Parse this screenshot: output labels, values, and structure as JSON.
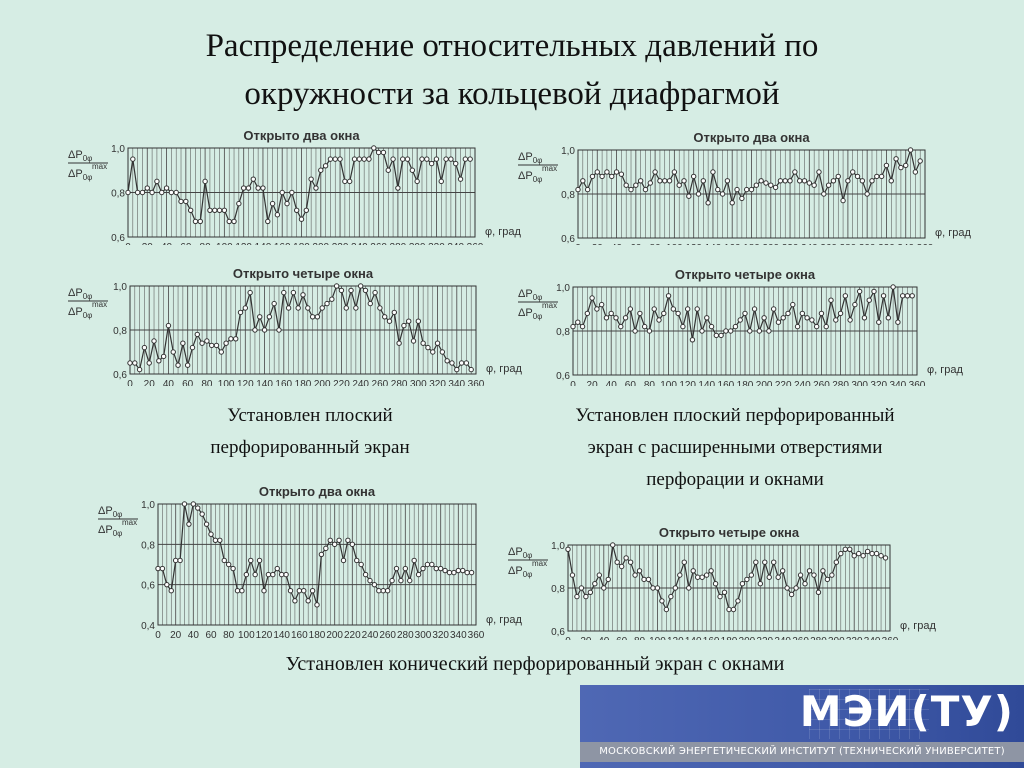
{
  "slide": {
    "title_line1": "Распределение относительных давлений по",
    "title_line2": "окружности за кольцевой диафрагмой"
  },
  "captions": {
    "flat_screen": [
      "Установлен плоский",
      "перфорированный экран"
    ],
    "flat_screen_wide": [
      "Установлен плоский перфорированный",
      "экран с расширенными отверстиями",
      "перфорации и окнами"
    ],
    "conical_screen": [
      "Установлен конический перфорированный экран с окнами"
    ]
  },
  "logo": {
    "name": "МЭИ(ТУ)",
    "subtitle": "МОСКОВСКИЙ ЭНЕРГЕТИЧЕСКИЙ ИНСТИТУТ (ТЕХНИЧЕСКИЙ УНИВЕРСИТЕТ)"
  },
  "colors": {
    "background": "#d6ede4",
    "line": "#333333",
    "grid": "#555555",
    "logo_blue": "#4f68b4"
  },
  "chart_data": [
    {
      "type": "line",
      "title": "Открыто два окна",
      "ylabel_num": "ΔP",
      "ylabel_num_sub": "0φ",
      "ylabel_den": "ΔP",
      "ylabel_den_sub": "0φ",
      "ylabel_den_sup": "max",
      "xlabel": "φ, град",
      "ylim": [
        0.6,
        1.0
      ],
      "yticks": [
        "1,0",
        "0,8",
        "0,6"
      ],
      "ytick_values": [
        1.0,
        0.8,
        0.6
      ],
      "xticks": [
        "0",
        "20",
        "40",
        "60",
        "80",
        "100",
        "120",
        "140",
        "160",
        "180",
        "200",
        "220",
        "240",
        "260",
        "280",
        "300",
        "320",
        "340",
        "360"
      ],
      "x": [
        0,
        5,
        10,
        15,
        20,
        25,
        30,
        35,
        40,
        45,
        50,
        55,
        60,
        65,
        70,
        75,
        80,
        85,
        90,
        95,
        100,
        105,
        110,
        115,
        120,
        125,
        130,
        135,
        140,
        145,
        150,
        155,
        160,
        165,
        170,
        175,
        180,
        185,
        190,
        195,
        200,
        205,
        210,
        215,
        220,
        225,
        230,
        235,
        240,
        245,
        250,
        255,
        260,
        265,
        270,
        275,
        280,
        285,
        290,
        295,
        300,
        305,
        310,
        315,
        320,
        325,
        330,
        335,
        340,
        345,
        350,
        355
      ],
      "values": [
        0.8,
        0.95,
        0.8,
        0.8,
        0.82,
        0.8,
        0.85,
        0.8,
        0.82,
        0.8,
        0.8,
        0.76,
        0.76,
        0.72,
        0.67,
        0.67,
        0.85,
        0.72,
        0.72,
        0.72,
        0.72,
        0.67,
        0.67,
        0.75,
        0.82,
        0.82,
        0.86,
        0.82,
        0.82,
        0.67,
        0.75,
        0.7,
        0.8,
        0.75,
        0.8,
        0.72,
        0.68,
        0.72,
        0.86,
        0.82,
        0.9,
        0.92,
        0.95,
        0.95,
        0.95,
        0.85,
        0.85,
        0.95,
        0.95,
        0.95,
        0.95,
        1.0,
        0.98,
        0.98,
        0.9,
        0.95,
        0.82,
        0.95,
        0.95,
        0.9,
        0.85,
        0.95,
        0.95,
        0.93,
        0.95,
        0.85,
        0.95,
        0.95,
        0.93,
        0.86,
        0.95,
        0.95
      ]
    },
    {
      "type": "line",
      "title": "Открыто два окна",
      "ylabel_num": "ΔP",
      "ylabel_num_sub": "0φ",
      "ylabel_den": "ΔP",
      "ylabel_den_sub": "0φ",
      "ylabel_den_sup": "max",
      "xlabel": "φ, град",
      "ylim": [
        0.6,
        1.0
      ],
      "yticks": [
        "1,0",
        "0,8",
        "0,6"
      ],
      "ytick_values": [
        1.0,
        0.8,
        0.6
      ],
      "xticks": [
        "0",
        "20",
        "40",
        "60",
        "80",
        "100",
        "120",
        "140",
        "160",
        "180",
        "200",
        "220",
        "240",
        "260",
        "280",
        "300",
        "320",
        "340",
        "360"
      ],
      "x": [
        0,
        5,
        10,
        15,
        20,
        25,
        30,
        35,
        40,
        45,
        50,
        55,
        60,
        65,
        70,
        75,
        80,
        85,
        90,
        95,
        100,
        105,
        110,
        115,
        120,
        125,
        130,
        135,
        140,
        145,
        150,
        155,
        160,
        165,
        170,
        175,
        180,
        185,
        190,
        195,
        200,
        205,
        210,
        215,
        220,
        225,
        230,
        235,
        240,
        245,
        250,
        255,
        260,
        265,
        270,
        275,
        280,
        285,
        290,
        295,
        300,
        305,
        310,
        315,
        320,
        325,
        330,
        335,
        340,
        345,
        350,
        355
      ],
      "values": [
        0.82,
        0.86,
        0.82,
        0.88,
        0.9,
        0.88,
        0.9,
        0.88,
        0.9,
        0.89,
        0.84,
        0.82,
        0.84,
        0.86,
        0.82,
        0.85,
        0.9,
        0.86,
        0.86,
        0.86,
        0.9,
        0.84,
        0.86,
        0.79,
        0.88,
        0.8,
        0.86,
        0.76,
        0.9,
        0.82,
        0.8,
        0.86,
        0.76,
        0.82,
        0.78,
        0.82,
        0.82,
        0.84,
        0.86,
        0.85,
        0.84,
        0.83,
        0.86,
        0.86,
        0.86,
        0.9,
        0.86,
        0.86,
        0.85,
        0.84,
        0.9,
        0.8,
        0.84,
        0.86,
        0.88,
        0.77,
        0.86,
        0.9,
        0.88,
        0.86,
        0.8,
        0.86,
        0.88,
        0.88,
        0.93,
        0.86,
        0.96,
        0.92,
        0.93,
        1.0,
        0.9,
        0.95
      ]
    },
    {
      "type": "line",
      "title": "Открыто четыре окна",
      "ylabel_num": "ΔP",
      "ylabel_num_sub": "0φ",
      "ylabel_den": "ΔP",
      "ylabel_den_sub": "0φ",
      "ylabel_den_sup": "max",
      "xlabel": "φ, град",
      "ylim": [
        0.6,
        1.0
      ],
      "yticks": [
        "1,0",
        "0,8",
        "0,6"
      ],
      "ytick_values": [
        1.0,
        0.8,
        0.6
      ],
      "xticks": [
        "0",
        "20",
        "40",
        "60",
        "80",
        "100",
        "120",
        "140",
        "160",
        "180",
        "200",
        "220",
        "240",
        "260",
        "280",
        "300",
        "320",
        "340",
        "360"
      ],
      "x": [
        0,
        5,
        10,
        15,
        20,
        25,
        30,
        35,
        40,
        45,
        50,
        55,
        60,
        65,
        70,
        75,
        80,
        85,
        90,
        95,
        100,
        105,
        110,
        115,
        120,
        125,
        130,
        135,
        140,
        145,
        150,
        155,
        160,
        165,
        170,
        175,
        180,
        185,
        190,
        195,
        200,
        205,
        210,
        215,
        220,
        225,
        230,
        235,
        240,
        245,
        250,
        255,
        260,
        265,
        270,
        275,
        280,
        285,
        290,
        295,
        300,
        305,
        310,
        315,
        320,
        325,
        330,
        335,
        340,
        345,
        350,
        355
      ],
      "values": [
        0.65,
        0.65,
        0.62,
        0.72,
        0.65,
        0.75,
        0.66,
        0.68,
        0.82,
        0.7,
        0.64,
        0.74,
        0.64,
        0.72,
        0.78,
        0.74,
        0.75,
        0.73,
        0.73,
        0.7,
        0.74,
        0.76,
        0.76,
        0.88,
        0.9,
        0.97,
        0.8,
        0.86,
        0.8,
        0.86,
        0.92,
        0.8,
        0.97,
        0.9,
        0.97,
        0.9,
        0.96,
        0.9,
        0.86,
        0.86,
        0.9,
        0.92,
        0.94,
        1.0,
        0.98,
        0.9,
        0.98,
        0.9,
        1.0,
        0.98,
        0.92,
        0.97,
        0.9,
        0.86,
        0.84,
        0.88,
        0.74,
        0.82,
        0.84,
        0.75,
        0.84,
        0.74,
        0.72,
        0.7,
        0.74,
        0.7,
        0.66,
        0.65,
        0.62,
        0.65,
        0.65,
        0.62
      ]
    },
    {
      "type": "line",
      "title": "Открыто четыре окна",
      "ylabel_num": "ΔP",
      "ylabel_num_sub": "0φ",
      "ylabel_den": "ΔP",
      "ylabel_den_sub": "0φ",
      "ylabel_den_sup": "max",
      "xlabel": "φ, град",
      "ylim": [
        0.6,
        1.0
      ],
      "yticks": [
        "1,0",
        "0,8",
        "0,6"
      ],
      "ytick_values": [
        1.0,
        0.8,
        0.6
      ],
      "xticks": [
        "0",
        "20",
        "40",
        "60",
        "80",
        "100",
        "120",
        "140",
        "160",
        "180",
        "200",
        "220",
        "240",
        "260",
        "280",
        "300",
        "320",
        "340",
        "360"
      ],
      "x": [
        0,
        5,
        10,
        15,
        20,
        25,
        30,
        35,
        40,
        45,
        50,
        55,
        60,
        65,
        70,
        75,
        80,
        85,
        90,
        95,
        100,
        105,
        110,
        115,
        120,
        125,
        130,
        135,
        140,
        145,
        150,
        155,
        160,
        165,
        170,
        175,
        180,
        185,
        190,
        195,
        200,
        205,
        210,
        215,
        220,
        225,
        230,
        235,
        240,
        245,
        250,
        255,
        260,
        265,
        270,
        275,
        280,
        285,
        290,
        295,
        300,
        305,
        310,
        315,
        320,
        325,
        330,
        335,
        340,
        345,
        350,
        355
      ],
      "values": [
        0.82,
        0.84,
        0.82,
        0.88,
        0.95,
        0.9,
        0.92,
        0.86,
        0.88,
        0.86,
        0.82,
        0.86,
        0.9,
        0.8,
        0.88,
        0.82,
        0.8,
        0.9,
        0.85,
        0.88,
        0.96,
        0.9,
        0.88,
        0.82,
        0.9,
        0.76,
        0.9,
        0.8,
        0.86,
        0.82,
        0.78,
        0.78,
        0.8,
        0.8,
        0.82,
        0.85,
        0.88,
        0.8,
        0.9,
        0.8,
        0.86,
        0.8,
        0.9,
        0.84,
        0.86,
        0.88,
        0.92,
        0.82,
        0.88,
        0.86,
        0.85,
        0.82,
        0.88,
        0.82,
        0.94,
        0.85,
        0.88,
        0.96,
        0.85,
        0.92,
        0.98,
        0.86,
        0.94,
        0.98,
        0.84,
        0.96,
        0.86,
        1.0,
        0.84,
        0.96,
        0.96,
        0.96
      ]
    },
    {
      "type": "line",
      "title": "Открыто два окна",
      "ylabel_num": "ΔP",
      "ylabel_num_sub": "0φ",
      "ylabel_den": "ΔP",
      "ylabel_den_sub": "0φ",
      "ylabel_den_sup": "max",
      "xlabel": "φ, град",
      "ylim": [
        0.4,
        1.0
      ],
      "yticks": [
        "1,0",
        "0,8",
        "0,6",
        "0,4"
      ],
      "ytick_values": [
        1.0,
        0.8,
        0.6,
        0.4
      ],
      "xticks": [
        "0",
        "20",
        "40",
        "60",
        "80",
        "100",
        "120",
        "140",
        "160",
        "180",
        "200",
        "220",
        "240",
        "260",
        "280",
        "300",
        "320",
        "340",
        "360"
      ],
      "x": [
        0,
        5,
        10,
        15,
        20,
        25,
        30,
        35,
        40,
        45,
        50,
        55,
        60,
        65,
        70,
        75,
        80,
        85,
        90,
        95,
        100,
        105,
        110,
        115,
        120,
        125,
        130,
        135,
        140,
        145,
        150,
        155,
        160,
        165,
        170,
        175,
        180,
        185,
        190,
        195,
        200,
        205,
        210,
        215,
        220,
        225,
        230,
        235,
        240,
        245,
        250,
        255,
        260,
        265,
        270,
        275,
        280,
        285,
        290,
        295,
        300,
        305,
        310,
        315,
        320,
        325,
        330,
        335,
        340,
        345,
        350,
        355
      ],
      "values": [
        0.68,
        0.68,
        0.6,
        0.57,
        0.72,
        0.72,
        1.0,
        0.9,
        1.0,
        0.98,
        0.95,
        0.9,
        0.85,
        0.82,
        0.82,
        0.72,
        0.7,
        0.68,
        0.57,
        0.57,
        0.65,
        0.72,
        0.65,
        0.72,
        0.57,
        0.65,
        0.65,
        0.68,
        0.65,
        0.65,
        0.57,
        0.52,
        0.57,
        0.57,
        0.52,
        0.57,
        0.5,
        0.75,
        0.78,
        0.82,
        0.8,
        0.82,
        0.72,
        0.82,
        0.8,
        0.72,
        0.7,
        0.65,
        0.62,
        0.6,
        0.57,
        0.57,
        0.57,
        0.62,
        0.68,
        0.62,
        0.68,
        0.62,
        0.72,
        0.65,
        0.68,
        0.7,
        0.7,
        0.68,
        0.68,
        0.67,
        0.66,
        0.66,
        0.67,
        0.67,
        0.66,
        0.66
      ]
    },
    {
      "type": "line",
      "title": "Открыто четыре окна",
      "ylabel_num": "ΔP",
      "ylabel_num_sub": "0φ",
      "ylabel_den": "ΔP",
      "ylabel_den_sub": "0φ",
      "ylabel_den_sup": "max",
      "xlabel": "φ, град",
      "ylim": [
        0.6,
        1.0
      ],
      "yticks": [
        "1,0",
        "0,8",
        "0,6"
      ],
      "ytick_values": [
        1.0,
        0.8,
        0.6
      ],
      "xticks": [
        "0",
        "20",
        "40",
        "60",
        "80",
        "100",
        "120",
        "140",
        "160",
        "180",
        "200",
        "220",
        "240",
        "260",
        "280",
        "300",
        "320",
        "340",
        "360"
      ],
      "x": [
        0,
        5,
        10,
        15,
        20,
        25,
        30,
        35,
        40,
        45,
        50,
        55,
        60,
        65,
        70,
        75,
        80,
        85,
        90,
        95,
        100,
        105,
        110,
        115,
        120,
        125,
        130,
        135,
        140,
        145,
        150,
        155,
        160,
        165,
        170,
        175,
        180,
        185,
        190,
        195,
        200,
        205,
        210,
        215,
        220,
        225,
        230,
        235,
        240,
        245,
        250,
        255,
        260,
        265,
        270,
        275,
        280,
        285,
        290,
        295,
        300,
        305,
        310,
        315,
        320,
        325,
        330,
        335,
        340,
        345,
        350,
        355
      ],
      "values": [
        0.98,
        0.86,
        0.76,
        0.8,
        0.76,
        0.78,
        0.82,
        0.86,
        0.8,
        0.84,
        1.0,
        0.92,
        0.9,
        0.94,
        0.92,
        0.86,
        0.88,
        0.84,
        0.84,
        0.8,
        0.8,
        0.74,
        0.7,
        0.76,
        0.8,
        0.86,
        0.92,
        0.8,
        0.88,
        0.85,
        0.85,
        0.86,
        0.88,
        0.82,
        0.76,
        0.78,
        0.7,
        0.7,
        0.74,
        0.82,
        0.84,
        0.86,
        0.92,
        0.82,
        0.92,
        0.85,
        0.92,
        0.85,
        0.88,
        0.8,
        0.77,
        0.8,
        0.86,
        0.82,
        0.88,
        0.86,
        0.78,
        0.88,
        0.84,
        0.86,
        0.92,
        0.96,
        0.98,
        0.98,
        0.95,
        0.96,
        0.95,
        0.97,
        0.96,
        0.96,
        0.95,
        0.94
      ]
    }
  ]
}
